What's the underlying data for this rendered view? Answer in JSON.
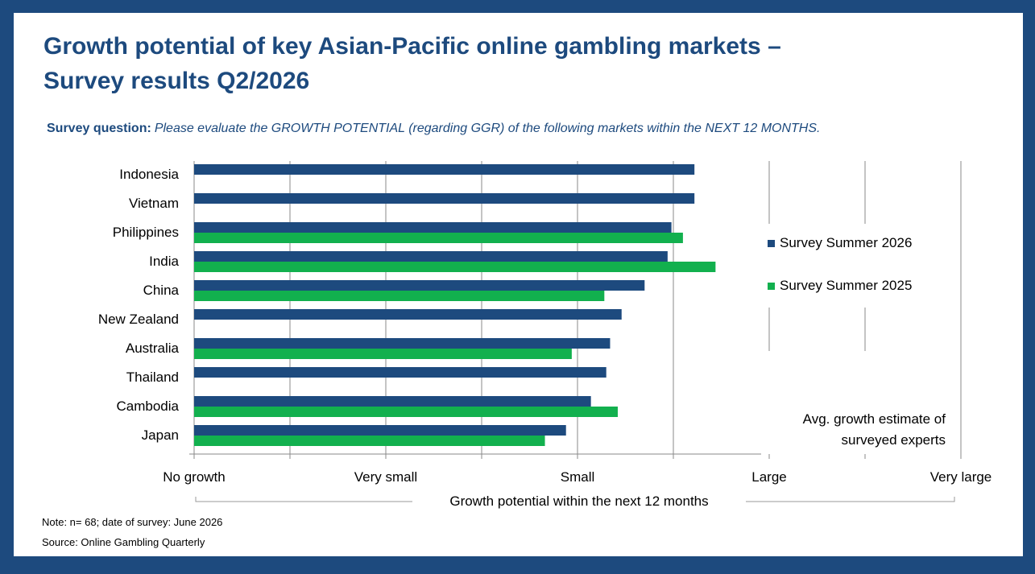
{
  "title_line1": "Growth potential of key Asian-Pacific online gambling markets –",
  "title_line2": "Survey results Q2/2026",
  "question": {
    "label": "Survey question:",
    "text": "Please evaluate the GROWTH POTENTIAL (regarding GGR) of the following markets within the NEXT 12 MONTHS."
  },
  "avg_label_line1": "Avg. growth estimate of",
  "avg_label_line2": "surveyed experts",
  "note": "Note: n= 68; date of survey: June 2026",
  "source": "Source: Online Gambling Quarterly",
  "colors": {
    "frame": "#1d4a7e",
    "series_2026": "#1d4a7e",
    "series_2025": "#12b04e"
  },
  "chart_data": {
    "type": "bar",
    "orientation": "horizontal",
    "categories": [
      "Indonesia",
      "Vietnam",
      "Philippines",
      "India",
      "China",
      "New Zealand",
      "Australia",
      "Thailand",
      "Cambodia",
      "Japan"
    ],
    "series": [
      {
        "name": "Survey Summer 2026",
        "values": [
          2.61,
          2.61,
          2.49,
          2.47,
          2.35,
          2.23,
          2.17,
          2.15,
          2.07,
          1.94
        ]
      },
      {
        "name": "Survey Summer 2025",
        "values": [
          null,
          null,
          2.55,
          2.72,
          2.14,
          null,
          1.97,
          null,
          2.21,
          1.83
        ]
      }
    ],
    "x_ticks": [
      "No growth",
      "Very small",
      "Small",
      "Large",
      "Very large"
    ],
    "x_tick_values": [
      0,
      1,
      2,
      3,
      4
    ],
    "xlim": [
      0,
      4
    ],
    "xlabel": "Growth potential within the next 12 months",
    "grid": true,
    "legend_position": "right"
  }
}
